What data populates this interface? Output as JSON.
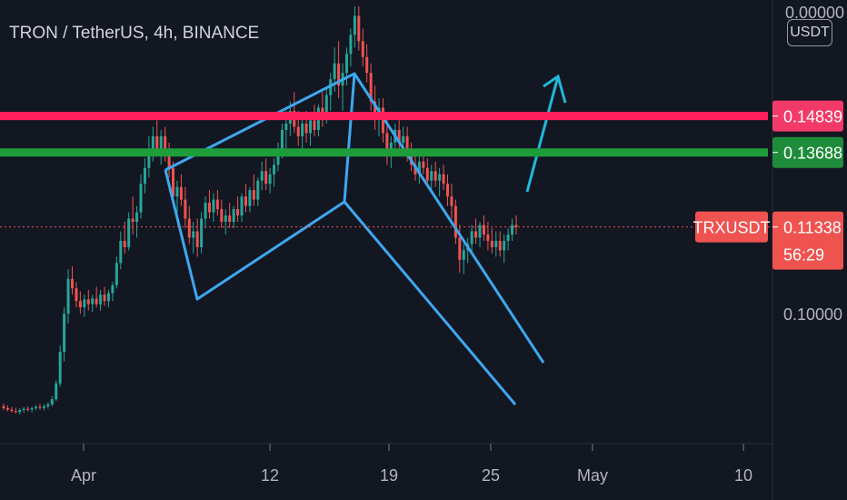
{
  "header": {
    "title": "TRON / TetherUS, 4h, BINANCE",
    "currency": "USDT"
  },
  "chart_data": {
    "type": "candlestick",
    "symbol": "TRXUSDT",
    "interval": "4h",
    "exchange": "BINANCE",
    "x_tick_labels": [
      "Apr",
      "12",
      "19",
      "25",
      "May",
      "10"
    ],
    "ylim": [
      0.045,
      0.185
    ],
    "grid": false,
    "colors": {
      "up": "#26a69a",
      "down": "#ef5350",
      "resistance": "#ff1f5a",
      "support": "#1e9e3a",
      "drawing": "#3ea7ef",
      "arrow": "#22b8d9"
    },
    "levels": [
      {
        "label": "0.14839",
        "value": 0.14839,
        "color": "#f23a68"
      },
      {
        "label": "0.13688",
        "value": 0.13688,
        "color": "#1e8c3a"
      }
    ],
    "last_price": {
      "symbol": "TRXUSDT",
      "value": "0.11338",
      "countdown": "56:29"
    },
    "hidden_axis_labels": [
      "0.00000",
      "0.10000"
    ],
    "ohlc": [
      [
        0.0568,
        0.0576,
        0.0556,
        0.0562
      ],
      [
        0.0562,
        0.0571,
        0.0552,
        0.0557
      ],
      [
        0.0557,
        0.0566,
        0.0548,
        0.0553
      ],
      [
        0.0553,
        0.0563,
        0.0545,
        0.055
      ],
      [
        0.055,
        0.0561,
        0.0543,
        0.0556
      ],
      [
        0.0556,
        0.0566,
        0.0548,
        0.056
      ],
      [
        0.056,
        0.0568,
        0.0551,
        0.0558
      ],
      [
        0.0558,
        0.0567,
        0.0549,
        0.0562
      ],
      [
        0.0562,
        0.0572,
        0.0555,
        0.0566
      ],
      [
        0.0566,
        0.0575,
        0.0557,
        0.0563
      ],
      [
        0.0563,
        0.0574,
        0.0555,
        0.0568
      ],
      [
        0.0568,
        0.058,
        0.056,
        0.0574
      ],
      [
        0.0574,
        0.06,
        0.0568,
        0.059
      ],
      [
        0.059,
        0.065,
        0.0585,
        0.064
      ],
      [
        0.064,
        0.076,
        0.063,
        0.074
      ],
      [
        0.074,
        0.088,
        0.071,
        0.086
      ],
      [
        0.086,
        0.1,
        0.083,
        0.097
      ],
      [
        0.097,
        0.101,
        0.092,
        0.094
      ],
      [
        0.094,
        0.096,
        0.088,
        0.09
      ],
      [
        0.09,
        0.093,
        0.086,
        0.088
      ],
      [
        0.088,
        0.092,
        0.085,
        0.0905
      ],
      [
        0.0905,
        0.0935,
        0.087,
        0.089
      ],
      [
        0.089,
        0.092,
        0.0865,
        0.0908
      ],
      [
        0.0908,
        0.0945,
        0.088,
        0.089
      ],
      [
        0.089,
        0.0935,
        0.087,
        0.092
      ],
      [
        0.092,
        0.0945,
        0.0885,
        0.09
      ],
      [
        0.09,
        0.0935,
        0.088,
        0.0925
      ],
      [
        0.0925,
        0.096,
        0.09,
        0.095
      ],
      [
        0.095,
        0.104,
        0.094,
        0.102
      ],
      [
        0.102,
        0.112,
        0.1,
        0.109
      ],
      [
        0.109,
        0.115,
        0.105,
        0.107
      ],
      [
        0.107,
        0.118,
        0.106,
        0.116
      ],
      [
        0.116,
        0.123,
        0.111,
        0.115
      ],
      [
        0.115,
        0.12,
        0.11,
        0.118
      ],
      [
        0.118,
        0.13,
        0.116,
        0.127
      ],
      [
        0.127,
        0.135,
        0.124,
        0.132
      ],
      [
        0.132,
        0.142,
        0.129,
        0.138
      ],
      [
        0.138,
        0.145,
        0.134,
        0.142
      ],
      [
        0.142,
        0.147,
        0.136,
        0.138
      ],
      [
        0.138,
        0.144,
        0.133,
        0.142
      ],
      [
        0.142,
        0.145,
        0.134,
        0.137
      ],
      [
        0.137,
        0.14,
        0.129,
        0.132
      ],
      [
        0.132,
        0.134,
        0.12,
        0.123
      ],
      [
        0.123,
        0.128,
        0.117,
        0.126
      ],
      [
        0.126,
        0.13,
        0.12,
        0.122
      ],
      [
        0.122,
        0.126,
        0.113,
        0.116
      ],
      [
        0.116,
        0.12,
        0.108,
        0.11
      ],
      [
        0.11,
        0.115,
        0.105,
        0.112
      ],
      [
        0.112,
        0.116,
        0.104,
        0.107
      ],
      [
        0.107,
        0.118,
        0.105,
        0.116
      ],
      [
        0.116,
        0.123,
        0.113,
        0.121
      ],
      [
        0.121,
        0.125,
        0.116,
        0.118
      ],
      [
        0.118,
        0.124,
        0.115,
        0.122
      ],
      [
        0.122,
        0.125,
        0.117,
        0.119
      ],
      [
        0.119,
        0.122,
        0.113,
        0.115
      ],
      [
        0.115,
        0.119,
        0.111,
        0.117
      ],
      [
        0.117,
        0.121,
        0.113,
        0.115
      ],
      [
        0.115,
        0.12,
        0.113,
        0.119
      ],
      [
        0.119,
        0.123,
        0.115,
        0.117
      ],
      [
        0.117,
        0.124,
        0.115,
        0.123
      ],
      [
        0.123,
        0.127,
        0.118,
        0.12
      ],
      [
        0.12,
        0.126,
        0.118,
        0.125
      ],
      [
        0.125,
        0.13,
        0.12,
        0.122
      ],
      [
        0.122,
        0.129,
        0.12,
        0.128
      ],
      [
        0.128,
        0.134,
        0.125,
        0.131
      ],
      [
        0.131,
        0.135,
        0.125,
        0.127
      ],
      [
        0.127,
        0.132,
        0.124,
        0.13
      ],
      [
        0.13,
        0.135,
        0.126,
        0.133
      ],
      [
        0.133,
        0.14,
        0.131,
        0.138
      ],
      [
        0.138,
        0.146,
        0.135,
        0.144
      ],
      [
        0.144,
        0.15,
        0.138,
        0.146
      ],
      [
        0.146,
        0.153,
        0.142,
        0.15
      ],
      [
        0.15,
        0.156,
        0.143,
        0.145
      ],
      [
        0.145,
        0.15,
        0.139,
        0.142
      ],
      [
        0.142,
        0.148,
        0.138,
        0.146
      ],
      [
        0.146,
        0.15,
        0.14,
        0.143
      ],
      [
        0.143,
        0.148,
        0.139,
        0.147
      ],
      [
        0.147,
        0.152,
        0.142,
        0.144
      ],
      [
        0.144,
        0.152,
        0.142,
        0.151
      ],
      [
        0.151,
        0.156,
        0.145,
        0.148
      ],
      [
        0.148,
        0.157,
        0.146,
        0.155
      ],
      [
        0.155,
        0.162,
        0.15,
        0.16
      ],
      [
        0.16,
        0.17,
        0.156,
        0.165
      ],
      [
        0.165,
        0.172,
        0.154,
        0.158
      ],
      [
        0.158,
        0.165,
        0.15,
        0.162
      ],
      [
        0.162,
        0.17,
        0.158,
        0.168
      ],
      [
        0.168,
        0.176,
        0.164,
        0.174
      ],
      [
        0.174,
        0.183,
        0.17,
        0.18
      ],
      [
        0.18,
        0.183,
        0.169,
        0.172
      ],
      [
        0.172,
        0.176,
        0.164,
        0.167
      ],
      [
        0.167,
        0.171,
        0.159,
        0.162
      ],
      [
        0.162,
        0.165,
        0.15,
        0.153
      ],
      [
        0.153,
        0.158,
        0.144,
        0.148
      ],
      [
        0.148,
        0.154,
        0.142,
        0.151
      ],
      [
        0.151,
        0.154,
        0.14,
        0.143
      ],
      [
        0.143,
        0.147,
        0.133,
        0.137
      ],
      [
        0.137,
        0.142,
        0.132,
        0.14
      ],
      [
        0.14,
        0.146,
        0.137,
        0.144
      ],
      [
        0.144,
        0.147,
        0.138,
        0.14
      ],
      [
        0.14,
        0.145,
        0.136,
        0.142
      ],
      [
        0.142,
        0.145,
        0.134,
        0.136
      ],
      [
        0.136,
        0.14,
        0.131,
        0.133
      ],
      [
        0.133,
        0.137,
        0.128,
        0.13
      ],
      [
        0.13,
        0.136,
        0.127,
        0.134
      ],
      [
        0.134,
        0.138,
        0.13,
        0.132
      ],
      [
        0.132,
        0.135,
        0.126,
        0.128
      ],
      [
        0.128,
        0.133,
        0.125,
        0.131
      ],
      [
        0.131,
        0.134,
        0.126,
        0.128
      ],
      [
        0.128,
        0.132,
        0.123,
        0.13
      ],
      [
        0.13,
        0.133,
        0.125,
        0.127
      ],
      [
        0.127,
        0.13,
        0.12,
        0.123
      ],
      [
        0.123,
        0.127,
        0.116,
        0.12
      ],
      [
        0.12,
        0.122,
        0.108,
        0.11
      ],
      [
        0.11,
        0.114,
        0.099,
        0.103
      ],
      [
        0.103,
        0.108,
        0.0985,
        0.106
      ],
      [
        0.106,
        0.11,
        0.102,
        0.108
      ],
      [
        0.108,
        0.114,
        0.105,
        0.112
      ],
      [
        0.112,
        0.116,
        0.108,
        0.11
      ],
      [
        0.11,
        0.115,
        0.107,
        0.114
      ],
      [
        0.114,
        0.117,
        0.109,
        0.111
      ],
      [
        0.111,
        0.115,
        0.106,
        0.109
      ],
      [
        0.109,
        0.113,
        0.105,
        0.107
      ],
      [
        0.107,
        0.112,
        0.104,
        0.109
      ],
      [
        0.109,
        0.112,
        0.104,
        0.106
      ],
      [
        0.106,
        0.111,
        0.102,
        0.109
      ],
      [
        0.109,
        0.113,
        0.106,
        0.111
      ],
      [
        0.111,
        0.116,
        0.109,
        0.114
      ],
      [
        0.114,
        0.117,
        0.111,
        0.1134
      ]
    ]
  }
}
